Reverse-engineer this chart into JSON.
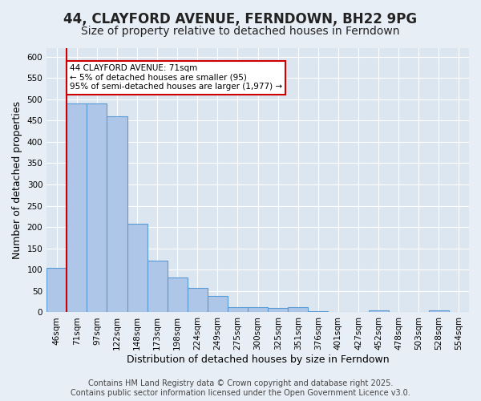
{
  "title": "44, CLAYFORD AVENUE, FERNDOWN, BH22 9PG",
  "subtitle": "Size of property relative to detached houses in Ferndown",
  "xlabel": "Distribution of detached houses by size in Ferndown",
  "ylabel": "Number of detached properties",
  "footer": "Contains HM Land Registry data © Crown copyright and database right 2025.\nContains public sector information licensed under the Open Government Licence v3.0.",
  "bins": [
    "46sqm",
    "71sqm",
    "97sqm",
    "122sqm",
    "148sqm",
    "173sqm",
    "198sqm",
    "224sqm",
    "249sqm",
    "275sqm",
    "300sqm",
    "325sqm",
    "351sqm",
    "376sqm",
    "401sqm",
    "427sqm",
    "452sqm",
    "478sqm",
    "503sqm",
    "528sqm",
    "554sqm"
  ],
  "values": [
    105,
    490,
    490,
    460,
    207,
    122,
    82,
    57,
    38,
    13,
    13,
    11,
    12,
    2,
    0,
    0,
    5,
    0,
    0,
    5,
    0
  ],
  "bar_color": "#aec6e8",
  "bar_edge_color": "#5b9bd5",
  "vline_x_index": 0,
  "vline_color": "#cc0000",
  "annotation_text": "44 CLAYFORD AVENUE: 71sqm\n← 5% of detached houses are smaller (95)\n95% of semi-detached houses are larger (1,977) →",
  "annotation_box_edge": "#cc0000",
  "ylim": [
    0,
    620
  ],
  "yticks": [
    0,
    50,
    100,
    150,
    200,
    250,
    300,
    350,
    400,
    450,
    500,
    550,
    600
  ],
  "background_color": "#e8eef5",
  "plot_bg_color": "#dce6f0",
  "grid_color": "#ffffff",
  "title_fontsize": 12,
  "subtitle_fontsize": 10,
  "axis_fontsize": 9,
  "tick_fontsize": 7.5,
  "footer_fontsize": 7
}
